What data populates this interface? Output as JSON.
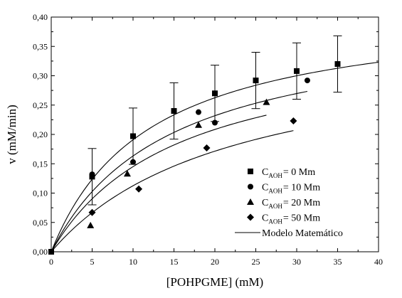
{
  "chart_data": {
    "type": "scatter",
    "xlabel": "[POHPGME] (mM)",
    "ylabel": "v (mM/min)",
    "xlim": [
      0,
      40
    ],
    "ylim": [
      0,
      0.4
    ],
    "xticks": [
      "0",
      "5",
      "10",
      "15",
      "20",
      "25",
      "30",
      "35",
      "40"
    ],
    "yticks": [
      "0,00",
      "0,05",
      "0,10",
      "0,15",
      "0,20",
      "0,25",
      "0,30",
      "0,35",
      "0,40"
    ],
    "grid": false,
    "legend_position": "bottom-right",
    "series": [
      {
        "name": "C_AOH = 0 Mm",
        "label_main": "C",
        "label_sub": "AOH",
        "label_rest": "= 0 Mm",
        "marker": "square",
        "x": [
          0,
          5,
          10,
          15,
          20,
          25,
          30,
          35
        ],
        "y": [
          0.0,
          0.128,
          0.197,
          0.24,
          0.27,
          0.292,
          0.308,
          0.32
        ],
        "errors": [
          0,
          0.048,
          0.048,
          0.048,
          0.048,
          0.048,
          0.048,
          0.048
        ]
      },
      {
        "name": "C_AOH = 10 Mm",
        "label_main": "C",
        "label_sub": "AOH",
        "label_rest": "= 10 Mm",
        "marker": "circle",
        "x": [
          5,
          10,
          18,
          20,
          31.3
        ],
        "y": [
          0.132,
          0.153,
          0.238,
          0.22,
          0.292
        ]
      },
      {
        "name": "C_AOH = 20 Mm",
        "label_main": "C",
        "label_sub": "AOH",
        "label_rest": "= 20 Mm",
        "marker": "triangle",
        "x": [
          4.8,
          9.3,
          18.0,
          26.3
        ],
        "y": [
          0.045,
          0.133,
          0.216,
          0.255
        ]
      },
      {
        "name": "C_AOH = 50 Mm",
        "label_main": "C",
        "label_sub": "AOH",
        "label_rest": "= 50 Mm",
        "marker": "diamond",
        "x": [
          5.0,
          10.7,
          19.0,
          29.6
        ],
        "y": [
          0.067,
          0.107,
          0.177,
          0.223
        ]
      }
    ],
    "model_curves": [
      {
        "vmax": 0.42,
        "km": 12.0,
        "x_end": 40
      },
      {
        "vmax": 0.4,
        "km": 14.5,
        "x_end": 31.3
      },
      {
        "vmax": 0.37,
        "km": 15.5,
        "x_end": 26.3
      },
      {
        "vmax": 0.36,
        "km": 22.0,
        "x_end": 29.6
      }
    ],
    "model_label": "Modelo Matemático"
  }
}
